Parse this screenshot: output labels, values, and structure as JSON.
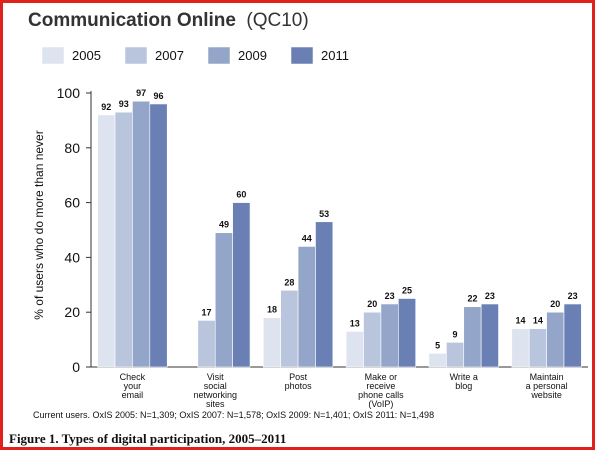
{
  "caption": "Figure 1. Types of digital participation, 2005–2011",
  "chart_data": {
    "type": "bar",
    "title": "Communication Online",
    "subtitle": "(QC10)",
    "ylabel": "% of users who do more than never",
    "xlabel": "",
    "ylim": [
      0,
      100
    ],
    "yticks": [
      0,
      20,
      40,
      60,
      80,
      100
    ],
    "grid": false,
    "legend_position": "top-left",
    "categories": [
      [
        "Check",
        "your",
        "email"
      ],
      [
        "Visit",
        "social",
        "networking",
        "sites"
      ],
      [
        "Post",
        "photos"
      ],
      [
        "Make or",
        "receive",
        "phone calls",
        "(VoIP)"
      ],
      [
        "Write a",
        "blog"
      ],
      [
        "Maintain",
        "a personal",
        "website"
      ]
    ],
    "series": [
      {
        "name": "2005",
        "color": "#dde3ef",
        "values": [
          92,
          null,
          18,
          13,
          5,
          14
        ],
        "labels": [
          "92",
          "",
          "18",
          "13",
          "5",
          "14"
        ]
      },
      {
        "name": "2007",
        "color": "#b9c5dc",
        "values": [
          93,
          17,
          28,
          20,
          9,
          14
        ],
        "labels": [
          "93",
          "17",
          "28",
          "20",
          "9",
          "14"
        ]
      },
      {
        "name": "2009",
        "color": "#93a5c9",
        "values": [
          97,
          49,
          44,
          23,
          22,
          20
        ],
        "labels": [
          "97",
          "49",
          "44",
          "23",
          "22",
          "20"
        ]
      },
      {
        "name": "2011",
        "color": "#6a80b5",
        "values": [
          96,
          60,
          53,
          25,
          23,
          23
        ],
        "labels": [
          "96",
          "60",
          "53",
          "25",
          "23",
          "23"
        ]
      }
    ],
    "note": "Current users. OxIS 2005: N=1,309; OxIS 2007: N=1,578; OxIS 2009: N=1,401; OxIS 2011: N=1,498"
  }
}
